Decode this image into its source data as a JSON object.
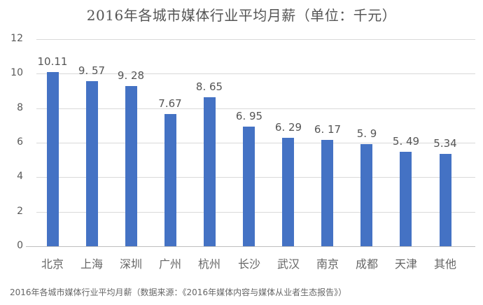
{
  "chart_data": {
    "type": "bar",
    "title": "2016年各城市媒体行业平均月薪（单位：千元）",
    "xlabel": "",
    "ylabel": "",
    "ylim": [
      0,
      12
    ],
    "yticks": [
      0,
      2,
      4,
      6,
      8,
      10,
      12
    ],
    "grid": true,
    "legend": "none",
    "categories": [
      "北京",
      "上海",
      "深圳",
      "广州",
      "杭州",
      "长沙",
      "武汉",
      "南京",
      "成都",
      "天津",
      "其他"
    ],
    "values": [
      10.11,
      9.57,
      9.28,
      7.67,
      8.65,
      6.95,
      6.29,
      6.17,
      5.9,
      5.49,
      5.34
    ],
    "data_labels": [
      "10.11",
      "9. 57",
      "9. 28",
      "7.67",
      "8. 65",
      "6. 95",
      "6. 29",
      "6. 17",
      "5. 9",
      "5. 49",
      "5.34"
    ],
    "bar_color": "#4472c4"
  },
  "caption": "2016年各城市媒体行业平均月薪（数据来源：《2016年媒体内容与媒体从业者生态报告》）"
}
